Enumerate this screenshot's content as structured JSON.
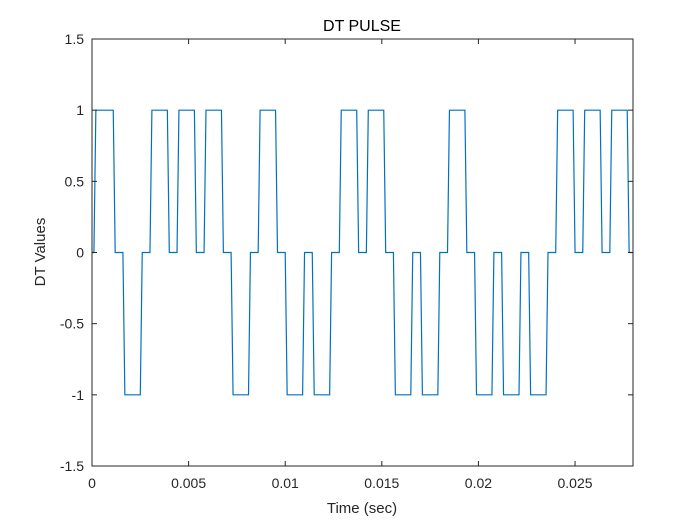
{
  "chart_data": {
    "type": "line",
    "title": "DT PULSE",
    "xlabel": "Time (sec)",
    "ylabel": "DT Values",
    "xlim": [
      0,
      0.028
    ],
    "ylim": [
      -1.5,
      1.5
    ],
    "xticks": [
      0,
      0.005,
      0.01,
      0.015,
      0.02,
      0.025
    ],
    "xtick_labels": [
      "0",
      "0.005",
      "0.01",
      "0.015",
      "0.02",
      "0.025"
    ],
    "yticks": [
      -1.5,
      -1,
      -0.5,
      0,
      0.5,
      1,
      1.5
    ],
    "ytick_labels": [
      "-1.5",
      "-1",
      "-0.5",
      "0",
      "0.5",
      "1",
      "1.5"
    ],
    "grid": false,
    "line_color": "#0072BD",
    "series": [
      {
        "x": [
          0,
          0.0001,
          0.0002,
          0.0011,
          0.0012,
          0.0013,
          0.0015,
          0.0016,
          0.0017,
          0.0025,
          0.0026,
          0.0027,
          0.0029,
          0.003,
          0.0031,
          0.0039,
          0.004,
          0.0041,
          0.0043,
          0.0044,
          0.0045,
          0.0053,
          0.0054,
          0.0055,
          0.0057,
          0.0058,
          0.0059,
          0.0067,
          0.0068,
          0.0069,
          0.0071,
          0.0072,
          0.0073,
          0.0081,
          0.0082,
          0.0083,
          0.0085,
          0.0086,
          0.0087,
          0.0095,
          0.0096,
          0.0097,
          0.0099,
          0.01,
          0.0101,
          0.0109,
          0.011,
          0.0111,
          0.0113,
          0.0114,
          0.0115,
          0.0123,
          0.0124,
          0.0125,
          0.0127,
          0.0128,
          0.0129,
          0.0137,
          0.0138,
          0.0139,
          0.0141,
          0.0142,
          0.0143,
          0.0151,
          0.0152,
          0.0153,
          0.0155,
          0.0156,
          0.0157,
          0.0165,
          0.0166,
          0.0167,
          0.0169,
          0.017,
          0.0171,
          0.0179,
          0.018,
          0.0181,
          0.0183,
          0.0184,
          0.0185,
          0.0193,
          0.0194,
          0.0195,
          0.0197,
          0.0198,
          0.0199,
          0.0207,
          0.0208,
          0.0209,
          0.0211,
          0.0212,
          0.0213,
          0.0221,
          0.0222,
          0.0223,
          0.0225,
          0.0226,
          0.0227,
          0.0235,
          0.0236,
          0.0237,
          0.0239,
          0.024,
          0.0241,
          0.0249,
          0.025,
          0.0251,
          0.0253,
          0.0254,
          0.0255,
          0.0263,
          0.0264,
          0.0265,
          0.0267,
          0.0268,
          0.0269,
          0.0277,
          0.0278,
          0.028
        ],
        "y": [
          0,
          0,
          1,
          1,
          0,
          0,
          0,
          0,
          -1,
          -1,
          0,
          0,
          0,
          0,
          1,
          1,
          0,
          0,
          0,
          0,
          1,
          1,
          0,
          0,
          0,
          0,
          1,
          1,
          0,
          0,
          0,
          0,
          -1,
          -1,
          0,
          0,
          0,
          0,
          1,
          1,
          0,
          0,
          0,
          0,
          -1,
          -1,
          0,
          0,
          0,
          0,
          -1,
          -1,
          0,
          0,
          0,
          0,
          1,
          1,
          0,
          0,
          0,
          0,
          1,
          1,
          0,
          0,
          0,
          0,
          -1,
          -1,
          0,
          0,
          0,
          0,
          -1,
          -1,
          0,
          0,
          0,
          0,
          1,
          1,
          0,
          0,
          0,
          0,
          -1,
          -1,
          0,
          0,
          0,
          0,
          -1,
          -1,
          0,
          0,
          0,
          0,
          -1,
          -1,
          0,
          0,
          0,
          0,
          1,
          1,
          0,
          0,
          0,
          0,
          1,
          1,
          0,
          0,
          0,
          0,
          1,
          1,
          0,
          0
        ]
      }
    ]
  }
}
